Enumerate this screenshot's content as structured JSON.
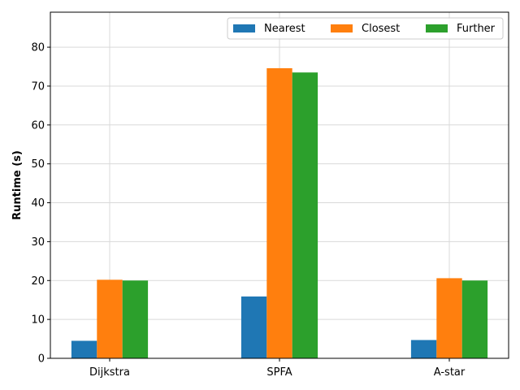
{
  "chart_data": {
    "type": "bar",
    "title": "",
    "xlabel": "",
    "ylabel": "Runtime (s)",
    "categories": [
      "Dijkstra",
      "SPFA",
      "A-star"
    ],
    "series": [
      {
        "name": "Nearest",
        "color": "#1f77b4",
        "values": [
          4.5,
          15.9,
          4.7
        ]
      },
      {
        "name": "Closest",
        "color": "#ff7f0e",
        "values": [
          20.2,
          74.6,
          20.6
        ]
      },
      {
        "name": "Further",
        "color": "#2ca02c",
        "values": [
          20.0,
          73.5,
          20.0
        ]
      }
    ],
    "ylim": [
      0,
      89
    ],
    "yticks": [
      0,
      10,
      20,
      30,
      40,
      50,
      60,
      70,
      80
    ],
    "grid": true,
    "legend": {
      "placement": "top-right",
      "columns": 3
    }
  }
}
